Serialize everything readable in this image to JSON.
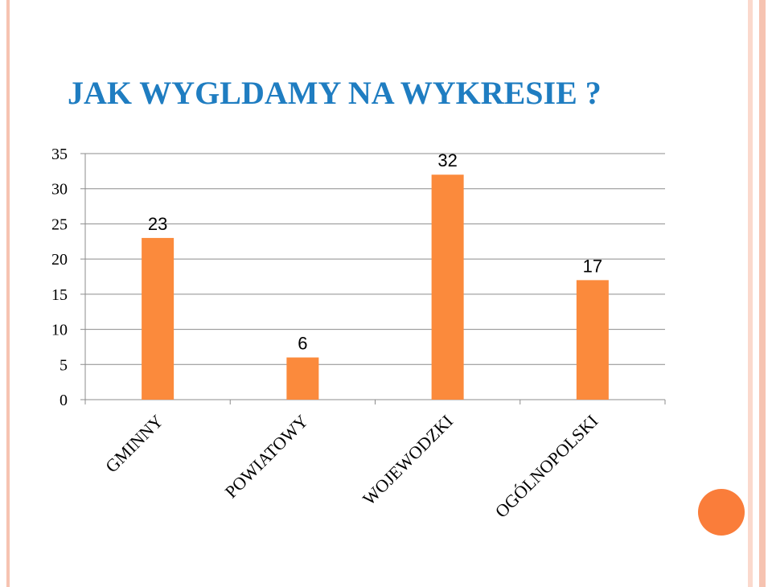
{
  "slide": {
    "title": "JAK WYGLDAMY NA WYKRESIE ?",
    "title_color": "#1F7DC1",
    "accent_color": "#FA7D3A",
    "border_colors": [
      "#F6C3B1",
      "#FBD9CD"
    ]
  },
  "chart_data": {
    "type": "bar",
    "categories": [
      "GMINNY",
      "POWIATOWY",
      "WOJEWODZKI",
      "OGÓLNOPOLSKI"
    ],
    "values": [
      23,
      6,
      32,
      17
    ],
    "data_labels": [
      "23",
      "6",
      "32",
      "17"
    ],
    "ylim": [
      0,
      35
    ],
    "yticks": [
      0,
      5,
      10,
      15,
      20,
      25,
      30,
      35
    ],
    "grid": true,
    "legend": "none",
    "bar_color": "#FB8A3C",
    "gridline_color": "#8C8C8C"
  }
}
